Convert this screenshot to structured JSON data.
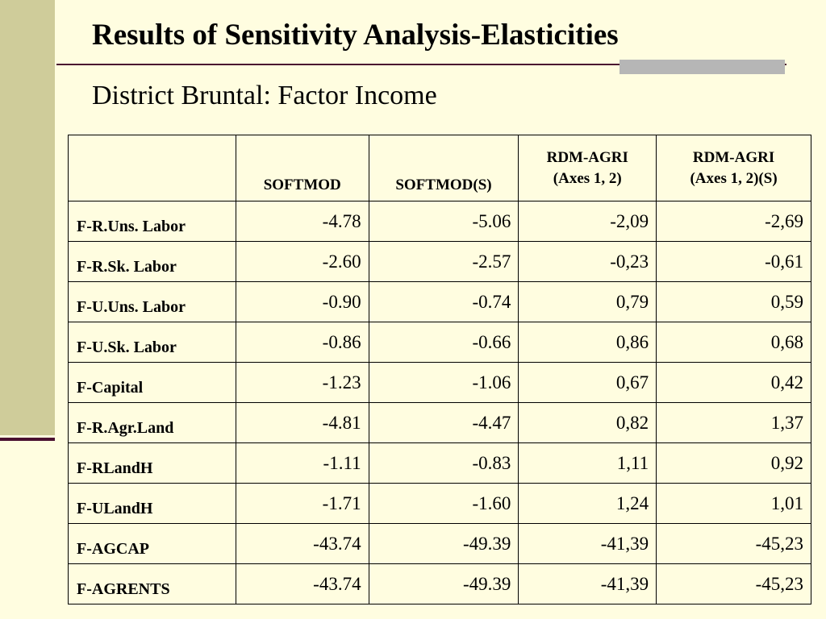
{
  "title": "Results of Sensitivity Analysis-Elasticities",
  "subtitle": "District Bruntal: Factor Income",
  "table": {
    "headers": [
      "",
      "SOFTMOD",
      "SOFTMOD(S)",
      "RDM-AGRI (Axes 1, 2)",
      "RDM-AGRI (Axes 1, 2)(S)"
    ],
    "header_lines": {
      "rdm_1": [
        "RDM-AGRI",
        "(Axes 1, 2)"
      ],
      "rdm_2": [
        "RDM-AGRI",
        "(Axes 1, 2)(S)"
      ]
    },
    "rows": [
      {
        "label": "F-R.Uns. Labor",
        "values": [
          "-4.78",
          "-5.06",
          "-2,09",
          "-2,69"
        ]
      },
      {
        "label": "F-R.Sk. Labor",
        "values": [
          "-2.60",
          "-2.57",
          "-0,23",
          "-0,61"
        ]
      },
      {
        "label": "F-U.Uns. Labor",
        "values": [
          "-0.90",
          "-0.74",
          "0,79",
          "0,59"
        ]
      },
      {
        "label": "F-U.Sk. Labor",
        "values": [
          "-0.86",
          "-0.66",
          "0,86",
          "0,68"
        ]
      },
      {
        "label": "F-Capital",
        "values": [
          "-1.23",
          "-1.06",
          "0,67",
          "0,42"
        ]
      },
      {
        "label": "F-R.Agr.Land",
        "values": [
          "-4.81",
          "-4.47",
          "0,82",
          "1,37"
        ]
      },
      {
        "label": "F-RLandH",
        "values": [
          "-1.11",
          "-0.83",
          "1,11",
          "0,92"
        ]
      },
      {
        "label": "F-ULandH",
        "values": [
          "-1.71",
          "-1.60",
          "1,24",
          "1,01"
        ]
      },
      {
        "label": "F-AGCAP",
        "values": [
          "-43.74",
          "-49.39",
          "-41,39",
          "-45,23"
        ]
      },
      {
        "label": "F-AGRENTS",
        "values": [
          "-43.74",
          "-49.39",
          "-41,39",
          "-45,23"
        ]
      }
    ]
  },
  "colors": {
    "background": "#fffde0",
    "left_bar": "#cfcc9a",
    "rule": "#4a1030",
    "rule_accent": "#b6b6b6"
  }
}
